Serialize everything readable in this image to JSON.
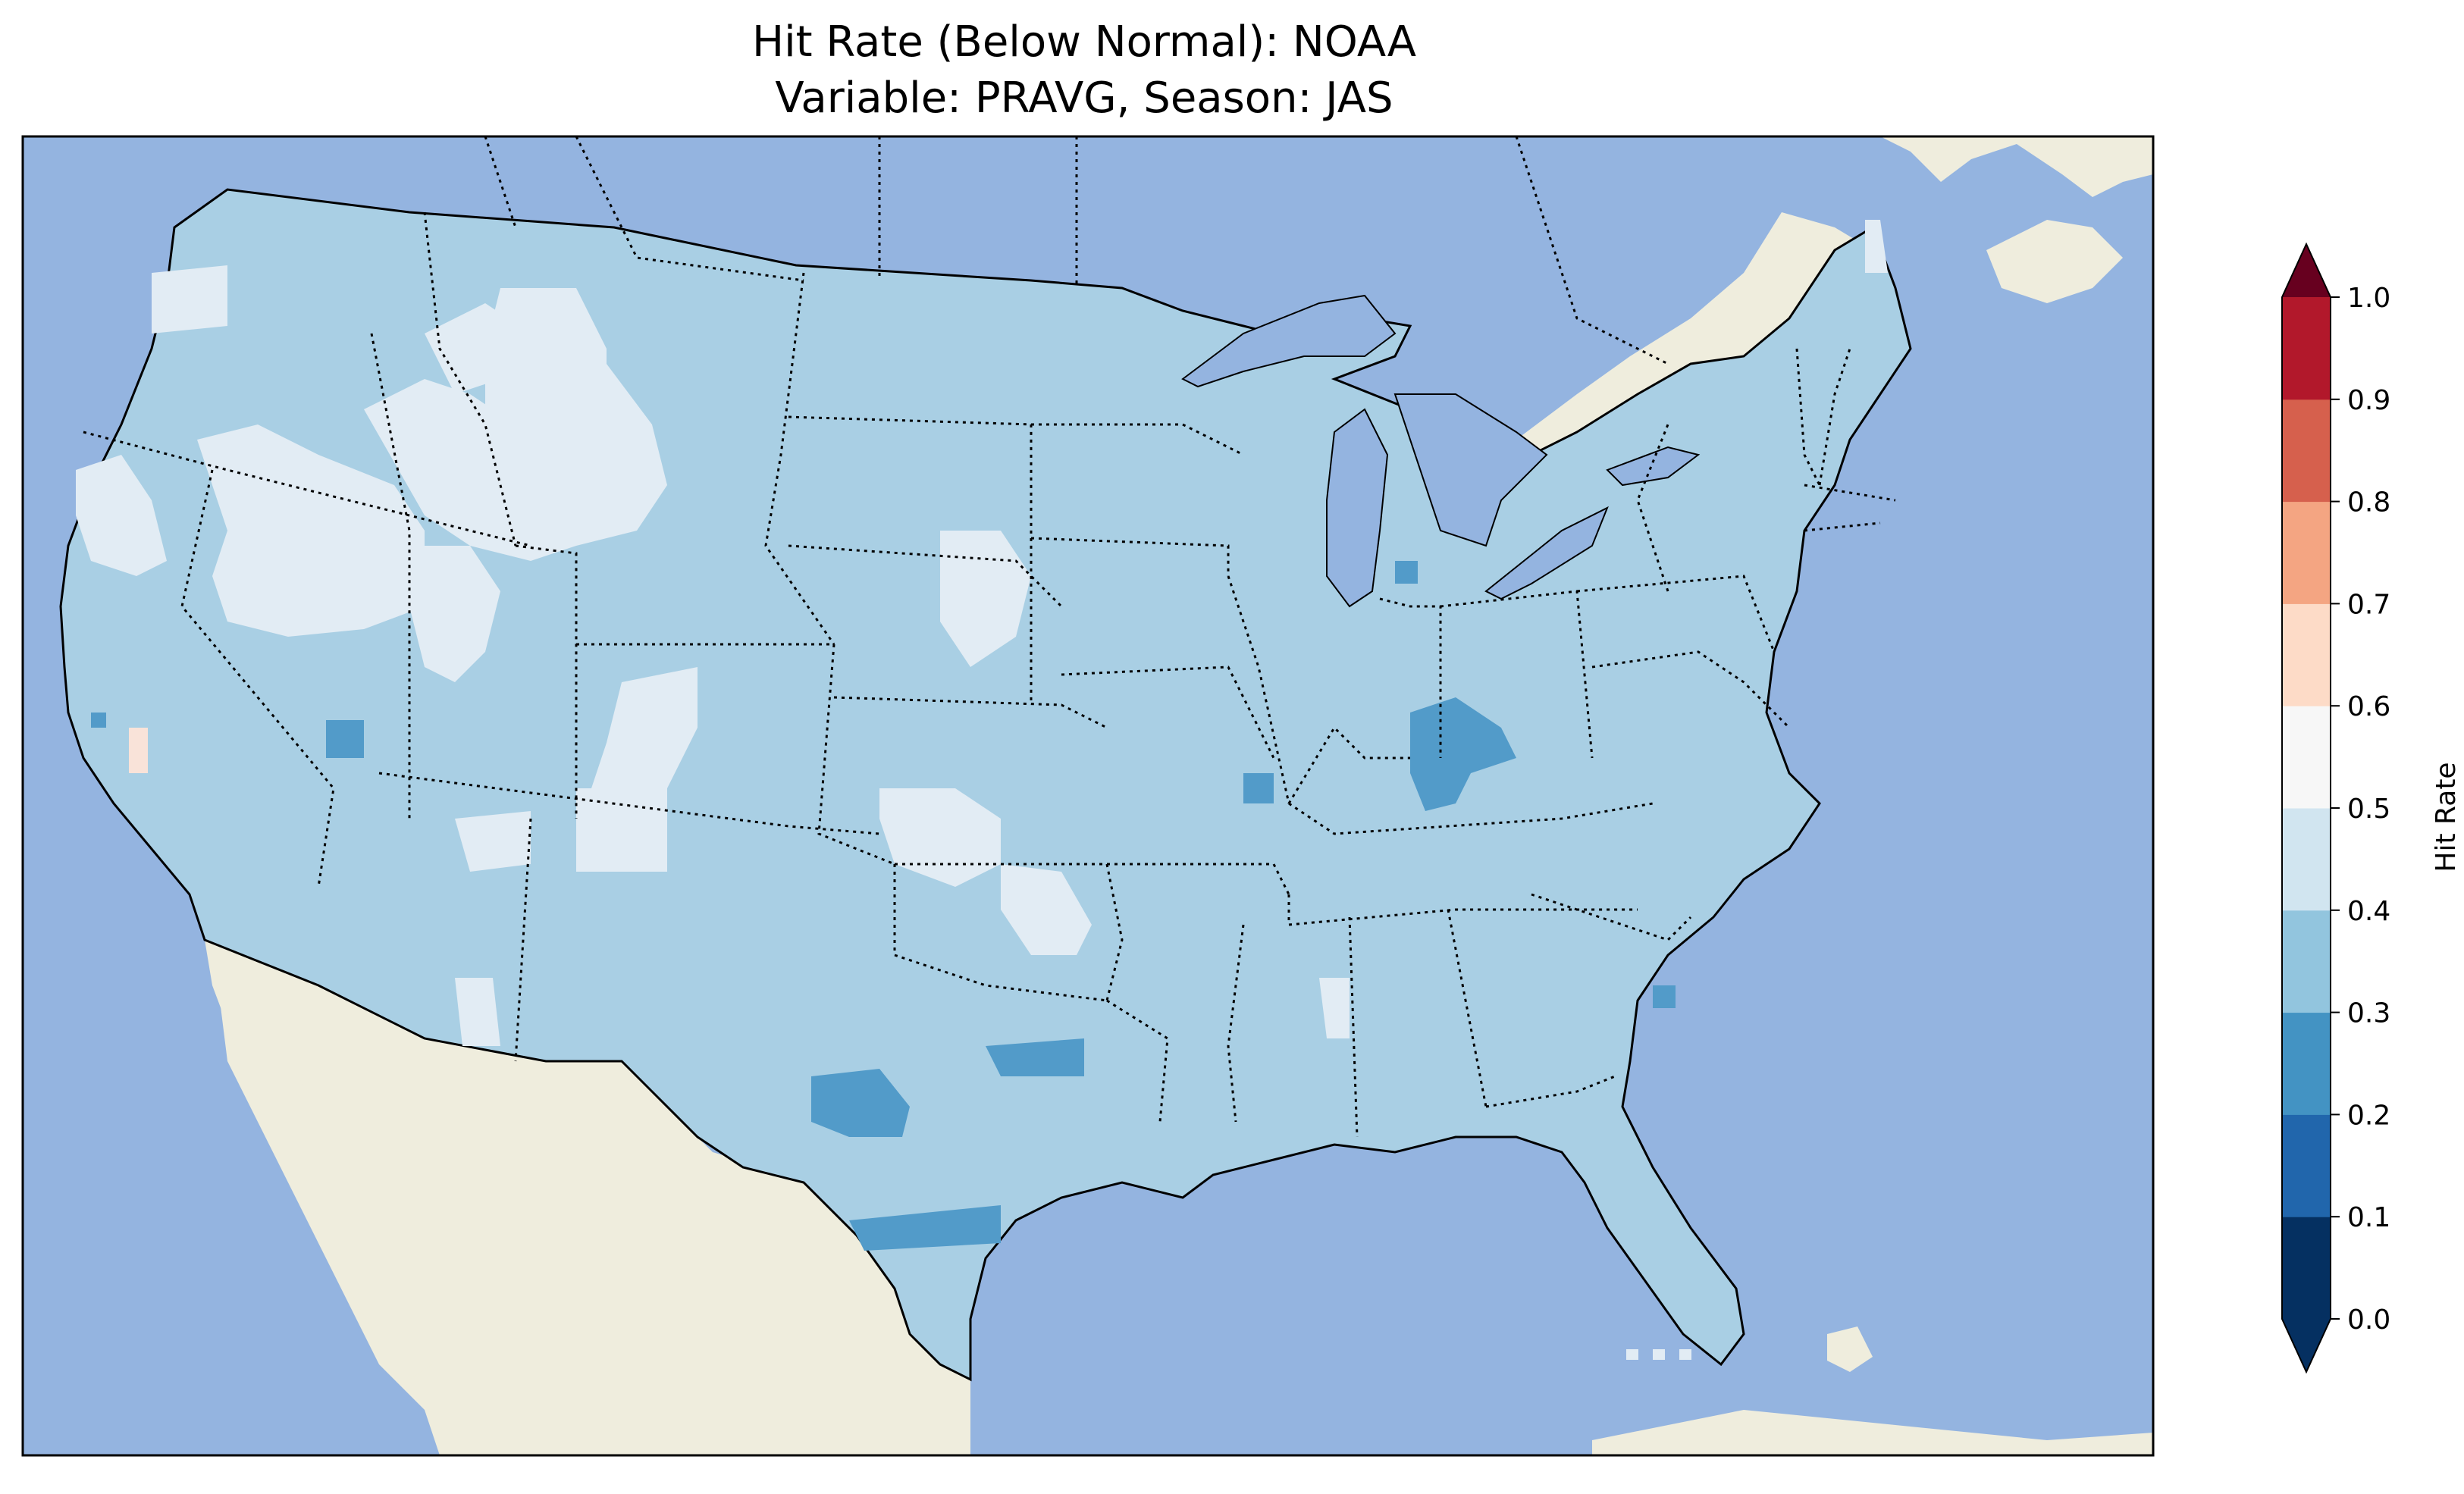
{
  "title": {
    "line1": "Hit Rate (Below Normal): NOAA",
    "line2": "Variable: PRAVG, Season: JAS"
  },
  "colors": {
    "ocean": "#94b4e0",
    "land": "#efeddd",
    "coast": "#000000",
    "value_0_3_0_4": "#a9cfe4",
    "value_0_4_0_5": "#e2ecf4",
    "value_0_2_0_3": "#529bc9",
    "value_0_5_0_6": "#f9e3d9"
  },
  "colorbar": {
    "label": "Hit Rate",
    "ticks": [
      "0.0",
      "0.1",
      "0.2",
      "0.3",
      "0.4",
      "0.5",
      "0.6",
      "0.7",
      "0.8",
      "0.9",
      "1.0"
    ],
    "colors": [
      "#053061",
      "#2166ac",
      "#4393c3",
      "#92c5de",
      "#d1e5f0",
      "#f7f7f7",
      "#fddbc7",
      "#f4a582",
      "#d6604d",
      "#b2182b"
    ],
    "under_color": "#053061",
    "over_color": "#67001f"
  },
  "map_data": {
    "region": "Contiguous United States",
    "variable": "PRAVG",
    "season": "JAS",
    "dominant_range": "0.3–0.4",
    "notable_areas": [
      {
        "range": "0.4–0.5",
        "areas": [
          "Pacific Northwest",
          "Northern California",
          "Idaho",
          "Montana",
          "Wyoming",
          "Nevada",
          "Utah",
          "Colorado",
          "South Dakota",
          "Kansas",
          "Oklahoma",
          "Arizona",
          "New Mexico",
          "Maine"
        ]
      },
      {
        "range": "0.2–0.3",
        "areas": [
          "Kentucky",
          "Southern Ohio",
          "West Texas",
          "Texas Panhandle",
          "South Texas",
          "Southern Utah"
        ]
      }
    ]
  }
}
